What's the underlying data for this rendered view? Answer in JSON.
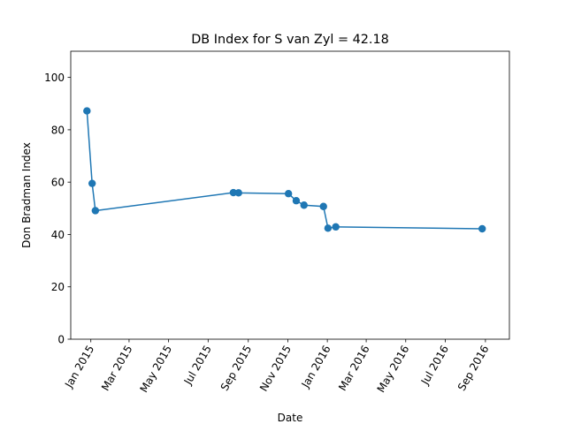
{
  "chart_data": {
    "type": "line",
    "title": "DB Index for S van Zyl = 42.18",
    "xlabel": "Date",
    "ylabel": "Don Bradman Index",
    "ylim": [
      0,
      110
    ],
    "xlim": [
      "2014-12-01",
      "2016-10-08"
    ],
    "y_ticks": [
      0,
      20,
      40,
      60,
      80,
      100
    ],
    "x_ticks": [
      {
        "date": "2015-01-01",
        "label": "Jan 2015"
      },
      {
        "date": "2015-03-01",
        "label": "Mar 2015"
      },
      {
        "date": "2015-05-01",
        "label": "May 2015"
      },
      {
        "date": "2015-07-01",
        "label": "Jul 2015"
      },
      {
        "date": "2015-09-01",
        "label": "Sep 2015"
      },
      {
        "date": "2015-11-01",
        "label": "Nov 2015"
      },
      {
        "date": "2016-01-01",
        "label": "Jan 2016"
      },
      {
        "date": "2016-03-01",
        "label": "Mar 2016"
      },
      {
        "date": "2016-05-01",
        "label": "May 2016"
      },
      {
        "date": "2016-07-01",
        "label": "Jul 2016"
      },
      {
        "date": "2016-09-01",
        "label": "Sep 2016"
      }
    ],
    "series": [
      {
        "color": "#1f77b4",
        "points": [
          {
            "x": "2014-12-26",
            "y": 87.2
          },
          {
            "x": "2015-01-03",
            "y": 59.5
          },
          {
            "x": "2015-01-08",
            "y": 49.1
          },
          {
            "x": "2015-08-09",
            "y": 56.0
          },
          {
            "x": "2015-08-17",
            "y": 55.9
          },
          {
            "x": "2015-11-02",
            "y": 55.6
          },
          {
            "x": "2015-11-14",
            "y": 52.9
          },
          {
            "x": "2015-11-26",
            "y": 51.2
          },
          {
            "x": "2015-12-26",
            "y": 50.7
          },
          {
            "x": "2016-01-02",
            "y": 42.4
          },
          {
            "x": "2016-01-14",
            "y": 42.9
          },
          {
            "x": "2016-08-27",
            "y": 42.18
          }
        ]
      }
    ],
    "grid": false,
    "legend": "none"
  }
}
